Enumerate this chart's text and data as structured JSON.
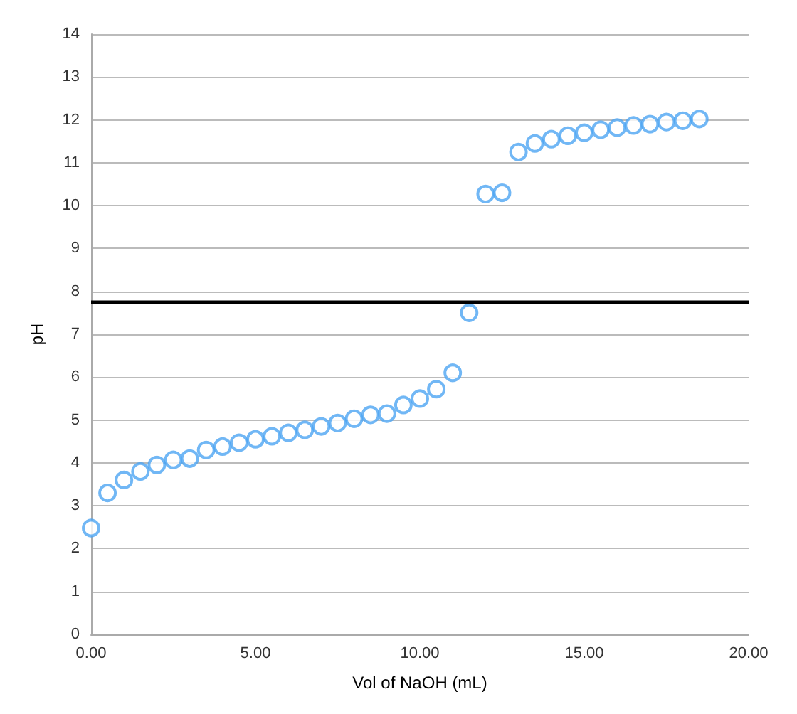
{
  "chart_data": {
    "type": "scatter",
    "xlabel": "Vol of NaOH (mL)",
    "ylabel": "pH",
    "x": [
      0,
      0.5,
      1,
      1.5,
      2,
      2.5,
      3,
      3.5,
      4,
      4.5,
      5,
      5.5,
      6,
      6.5,
      7,
      7.5,
      8,
      8.5,
      9,
      9.5,
      10,
      10.5,
      11,
      11.5,
      12,
      12.5,
      13,
      13.5,
      14,
      14.5,
      15,
      15.5,
      16,
      16.5,
      17,
      17.5,
      18,
      18.5
    ],
    "series": [
      {
        "color": "#4ea5f3",
        "values": [
          2.48,
          3.3,
          3.6,
          3.8,
          3.95,
          4.07,
          4.1,
          4.3,
          4.38,
          4.47,
          4.55,
          4.62,
          4.7,
          4.77,
          4.85,
          4.93,
          5.03,
          5.12,
          5.15,
          5.35,
          5.5,
          5.72,
          6.1,
          7.5,
          10.27,
          10.3,
          11.25,
          11.45,
          11.55,
          11.63,
          11.7,
          11.77,
          11.82,
          11.87,
          11.9,
          11.95,
          11.98,
          12.02
        ]
      }
    ],
    "xlim": [
      0,
      20
    ],
    "xticks": [
      {
        "value": 0,
        "label": "0.00"
      },
      {
        "value": 5,
        "label": "5.00"
      },
      {
        "value": 10,
        "label": "10.00"
      },
      {
        "value": 15,
        "label": "15.00"
      },
      {
        "value": 20,
        "label": "20.00"
      }
    ],
    "ylim": [
      0,
      14
    ],
    "yticks": [
      0,
      1,
      2,
      3,
      4,
      5,
      6,
      7,
      8,
      9,
      10,
      11,
      12,
      13,
      14
    ],
    "ref_lines": [
      {
        "axis": "y",
        "value": 7.75,
        "color": "#000000",
        "line_style": "solid"
      }
    ],
    "grid": "y",
    "marker": "circle"
  }
}
